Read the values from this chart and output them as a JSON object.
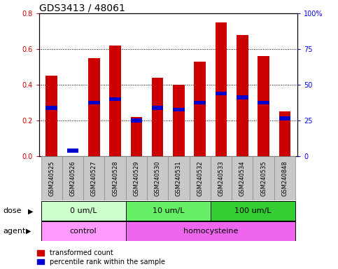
{
  "title": "GDS3413 / 48061",
  "samples": [
    "GSM240525",
    "GSM240526",
    "GSM240527",
    "GSM240528",
    "GSM240529",
    "GSM240530",
    "GSM240531",
    "GSM240532",
    "GSM240533",
    "GSM240534",
    "GSM240535",
    "GSM240848"
  ],
  "red_values": [
    0.45,
    0.0,
    0.55,
    0.62,
    0.22,
    0.44,
    0.4,
    0.53,
    0.75,
    0.68,
    0.56,
    0.25
  ],
  "blue_values": [
    0.27,
    0.03,
    0.3,
    0.32,
    0.2,
    0.27,
    0.26,
    0.3,
    0.35,
    0.33,
    0.3,
    0.21
  ],
  "ylim": [
    0.0,
    0.8
  ],
  "yticks_left": [
    0.0,
    0.2,
    0.4,
    0.6,
    0.8
  ],
  "yticks_right_vals": [
    0,
    25,
    50,
    75,
    100
  ],
  "yticks_right_labels": [
    "0",
    "25",
    "50",
    "75",
    "100%"
  ],
  "red_color": "#CC0000",
  "blue_color": "#0000CC",
  "bar_width": 0.55,
  "blue_bar_height": 0.022,
  "dose_groups": [
    {
      "label": "0 um/L",
      "start": 0,
      "end": 4,
      "color": "#ccffcc"
    },
    {
      "label": "10 um/L",
      "start": 4,
      "end": 8,
      "color": "#66ee66"
    },
    {
      "label": "100 um/L",
      "start": 8,
      "end": 12,
      "color": "#33cc33"
    }
  ],
  "agent_groups": [
    {
      "label": "control",
      "start": 0,
      "end": 4,
      "color": "#ff99ff"
    },
    {
      "label": "homocysteine",
      "start": 4,
      "end": 12,
      "color": "#ee66ee"
    }
  ],
  "sample_bg_color": "#c8c8c8",
  "legend_red": "transformed count",
  "legend_blue": "percentile rank within the sample",
  "title_fontsize": 10,
  "tick_fontsize": 7,
  "axis_label_fontsize": 8,
  "sample_fontsize": 6,
  "group_fontsize": 8
}
